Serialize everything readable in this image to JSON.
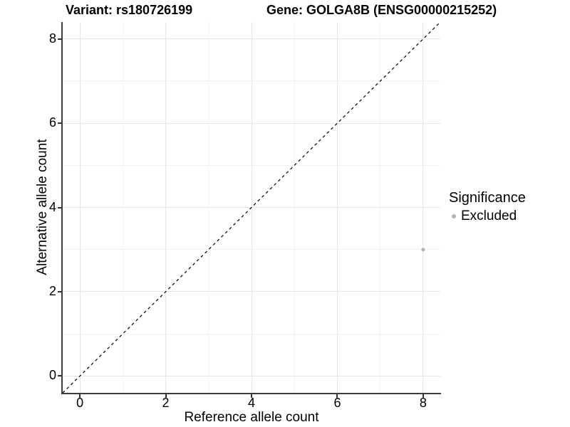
{
  "titles": {
    "left": "Variant: rs180726199",
    "right": "Gene: GOLGA8B (ENSG00000215252)"
  },
  "chart_data": {
    "type": "scatter",
    "title": "Variant: rs180726199   |   Gene: GOLGA8B (ENSG00000215252)",
    "xlabel": "Reference allele count",
    "ylabel": "Alternative allele count",
    "xlim": [
      -0.4,
      8.4
    ],
    "ylim": [
      -0.4,
      8.4
    ],
    "x_ticks": [
      0,
      2,
      4,
      6,
      8
    ],
    "y_ticks": [
      0,
      2,
      4,
      6,
      8
    ],
    "x_minor_ticks": [
      1,
      3,
      5,
      7
    ],
    "y_minor_ticks": [
      1,
      3,
      5,
      7
    ],
    "grid": true,
    "reference_line": {
      "type": "identity y=x",
      "style": "dashed",
      "color": "#000000",
      "from": [
        -0.4,
        -0.4
      ],
      "to": [
        8.4,
        8.4
      ]
    },
    "series": [
      {
        "name": "Excluded",
        "color": "#b3b3b3",
        "points": [
          {
            "x": 8,
            "y": 3
          }
        ]
      }
    ],
    "legend": {
      "title": "Significance",
      "position": "right",
      "items": [
        {
          "label": "Excluded",
          "color": "#b3b3b3"
        }
      ]
    }
  },
  "colors": {
    "grid_major": "#e6e6e6",
    "grid_minor": "#f2f2f2",
    "axis_line": "#3c3c3c",
    "tick": "#333333",
    "text": "#000000"
  }
}
